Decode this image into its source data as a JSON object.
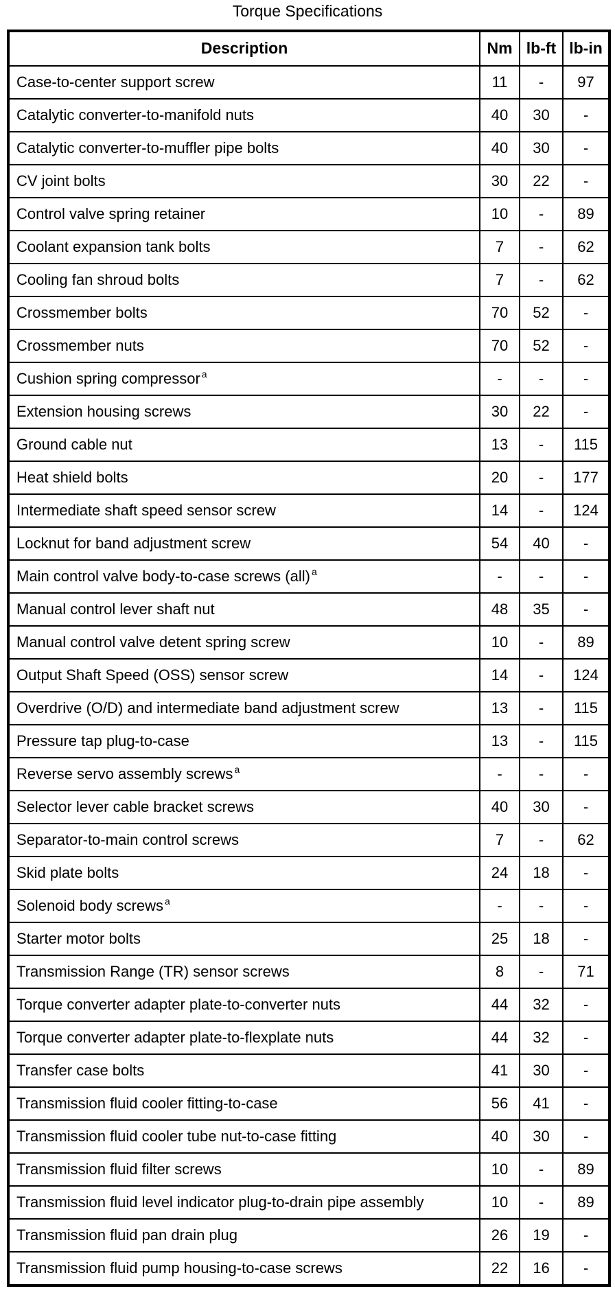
{
  "title": "Torque Specifications",
  "table": {
    "columns": {
      "description": "Description",
      "nm": "Nm",
      "lbft": "lb-ft",
      "lbin": "lb-in"
    },
    "rows": [
      {
        "description": "Case-to-center support screw",
        "sup": "",
        "nm": "11",
        "lbft": "-",
        "lbin": "97"
      },
      {
        "description": "Catalytic converter-to-manifold nuts",
        "sup": "",
        "nm": "40",
        "lbft": "30",
        "lbin": "-"
      },
      {
        "description": "Catalytic converter-to-muffler pipe bolts",
        "sup": "",
        "nm": "40",
        "lbft": "30",
        "lbin": "-"
      },
      {
        "description": "CV joint bolts",
        "sup": "",
        "nm": "30",
        "lbft": "22",
        "lbin": "-"
      },
      {
        "description": "Control valve spring retainer",
        "sup": "",
        "nm": "10",
        "lbft": "-",
        "lbin": "89"
      },
      {
        "description": "Coolant expansion tank bolts",
        "sup": "",
        "nm": "7",
        "lbft": "-",
        "lbin": "62"
      },
      {
        "description": "Cooling fan shroud bolts",
        "sup": "",
        "nm": "7",
        "lbft": "-",
        "lbin": "62"
      },
      {
        "description": "Crossmember bolts",
        "sup": "",
        "nm": "70",
        "lbft": "52",
        "lbin": "-"
      },
      {
        "description": "Crossmember nuts",
        "sup": "",
        "nm": "70",
        "lbft": "52",
        "lbin": "-"
      },
      {
        "description": "Cushion spring compressor",
        "sup": "a",
        "nm": "-",
        "lbft": "-",
        "lbin": "-"
      },
      {
        "description": "Extension housing screws",
        "sup": "",
        "nm": "30",
        "lbft": "22",
        "lbin": "-"
      },
      {
        "description": "Ground cable nut",
        "sup": "",
        "nm": "13",
        "lbft": "-",
        "lbin": "115"
      },
      {
        "description": "Heat shield bolts",
        "sup": "",
        "nm": "20",
        "lbft": "-",
        "lbin": "177"
      },
      {
        "description": "Intermediate shaft speed sensor screw",
        "sup": "",
        "nm": "14",
        "lbft": "-",
        "lbin": "124"
      },
      {
        "description": "Locknut for band adjustment screw",
        "sup": "",
        "nm": "54",
        "lbft": "40",
        "lbin": "-"
      },
      {
        "description": "Main control valve body-to-case screws (all)",
        "sup": "a",
        "nm": "-",
        "lbft": "-",
        "lbin": "-"
      },
      {
        "description": "Manual control lever shaft nut",
        "sup": "",
        "nm": "48",
        "lbft": "35",
        "lbin": "-"
      },
      {
        "description": "Manual control valve detent spring screw",
        "sup": "",
        "nm": "10",
        "lbft": "-",
        "lbin": "89"
      },
      {
        "description": "Output Shaft Speed (OSS) sensor screw",
        "sup": "",
        "nm": "14",
        "lbft": "-",
        "lbin": "124"
      },
      {
        "description": "Overdrive (O/D) and intermediate band adjustment screw",
        "sup": "",
        "nm": "13",
        "lbft": "-",
        "lbin": "115"
      },
      {
        "description": "Pressure tap plug-to-case",
        "sup": "",
        "nm": "13",
        "lbft": "-",
        "lbin": "115"
      },
      {
        "description": "Reverse servo assembly screws",
        "sup": "a",
        "nm": "-",
        "lbft": "-",
        "lbin": "-"
      },
      {
        "description": "Selector lever cable bracket screws",
        "sup": "",
        "nm": "40",
        "lbft": "30",
        "lbin": "-"
      },
      {
        "description": "Separator-to-main control screws",
        "sup": "",
        "nm": "7",
        "lbft": "-",
        "lbin": "62"
      },
      {
        "description": "Skid plate bolts",
        "sup": "",
        "nm": "24",
        "lbft": "18",
        "lbin": "-"
      },
      {
        "description": "Solenoid body screws",
        "sup": "a",
        "nm": "-",
        "lbft": "-",
        "lbin": "-"
      },
      {
        "description": "Starter motor bolts",
        "sup": "",
        "nm": "25",
        "lbft": "18",
        "lbin": "-"
      },
      {
        "description": "Transmission Range (TR) sensor screws",
        "sup": "",
        "nm": "8",
        "lbft": "-",
        "lbin": "71"
      },
      {
        "description": "Torque converter adapter plate-to-converter nuts",
        "sup": "",
        "nm": "44",
        "lbft": "32",
        "lbin": "-"
      },
      {
        "description": "Torque converter adapter plate-to-flexplate nuts",
        "sup": "",
        "nm": "44",
        "lbft": "32",
        "lbin": "-"
      },
      {
        "description": "Transfer case bolts",
        "sup": "",
        "nm": "41",
        "lbft": "30",
        "lbin": "-"
      },
      {
        "description": "Transmission fluid cooler fitting-to-case",
        "sup": "",
        "nm": "56",
        "lbft": "41",
        "lbin": "-"
      },
      {
        "description": "Transmission fluid cooler tube nut-to-case fitting",
        "sup": "",
        "nm": "40",
        "lbft": "30",
        "lbin": "-"
      },
      {
        "description": "Transmission fluid filter screws",
        "sup": "",
        "nm": "10",
        "lbft": "-",
        "lbin": "89"
      },
      {
        "description": "Transmission fluid level indicator plug-to-drain pipe assembly",
        "sup": "",
        "nm": "10",
        "lbft": "-",
        "lbin": "89"
      },
      {
        "description": "Transmission fluid pan drain plug",
        "sup": "",
        "nm": "26",
        "lbft": "19",
        "lbin": "-"
      },
      {
        "description": "Transmission fluid pump housing-to-case screws",
        "sup": "",
        "nm": "22",
        "lbft": "16",
        "lbin": "-"
      }
    ]
  },
  "colors": {
    "text": "#000000",
    "background": "#ffffff",
    "border": "#000000"
  }
}
